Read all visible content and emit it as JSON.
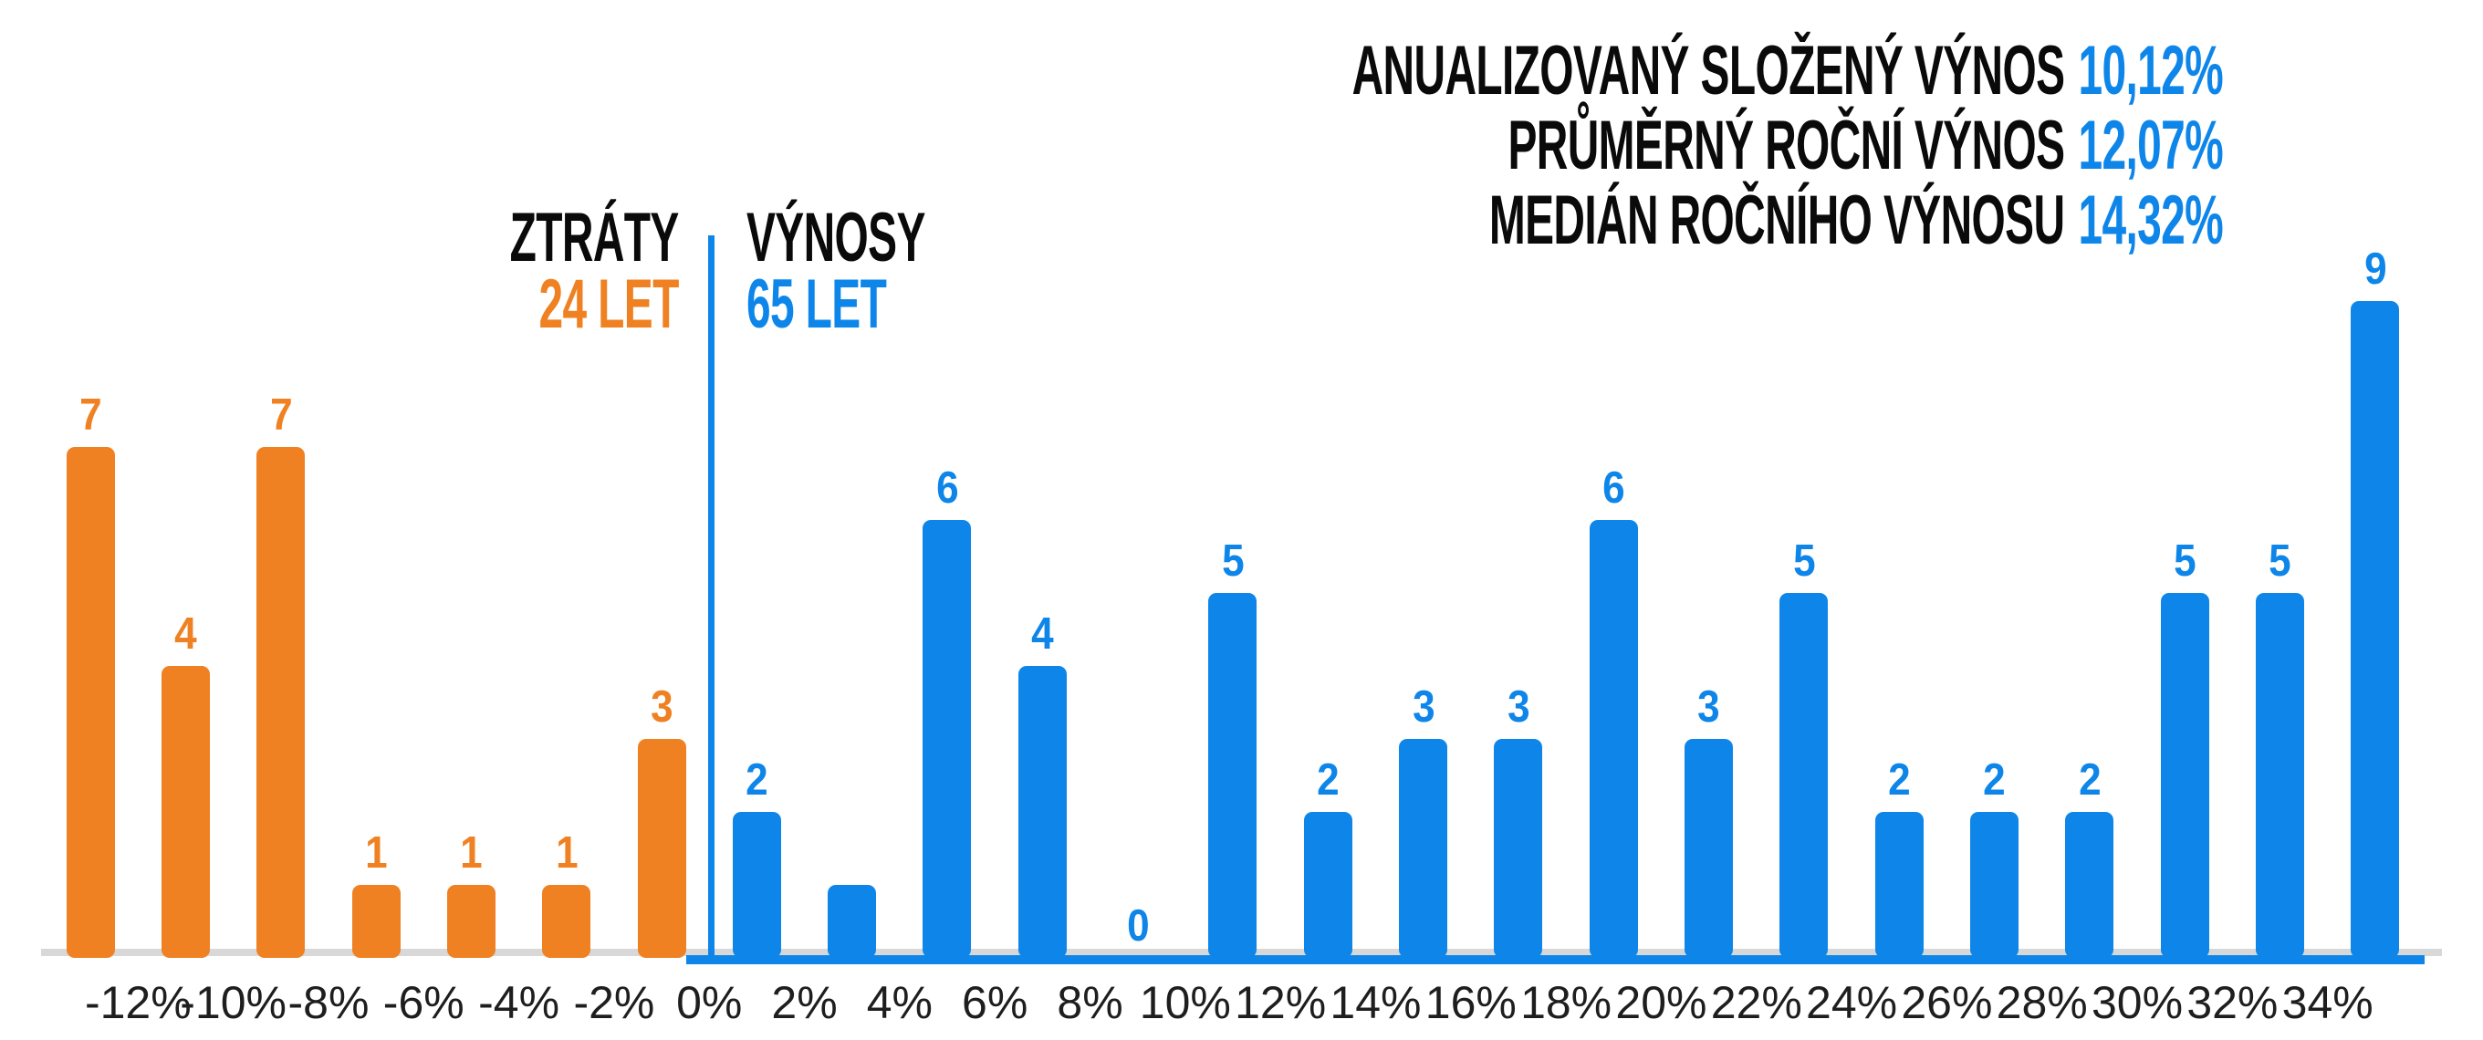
{
  "stats": {
    "lines": [
      {
        "label": "ANUALIZOVANÝ SLOŽENÝ VÝNOS",
        "value": "10,12%"
      },
      {
        "label": "PRŮMĚRNÝ ROČNÍ VÝNOS",
        "value": "12,07%"
      },
      {
        "label": "MEDIÁN ROČNÍHO VÝNOSU",
        "value": "14,32%"
      }
    ]
  },
  "legend": {
    "losses": {
      "title": "ZTRÁTY",
      "subtitle": "24 LET"
    },
    "gains": {
      "title": "VÝNOSY",
      "subtitle": "65 LET"
    }
  },
  "colors": {
    "losses": "#EF8122",
    "gains": "#0E86E9",
    "baseline": "#D8D8D8",
    "text": "#0A0A0A",
    "axis_text": "#1E1E1E"
  },
  "chart_data": {
    "type": "bar",
    "subtype": "histogram",
    "x_tick_labels": [
      "-12%",
      "-10%",
      "-8%",
      "-6%",
      "-4%",
      "-2%",
      "0%",
      "2%",
      "4%",
      "6%",
      "8%",
      "10%",
      "12%",
      "14%",
      "16%",
      "18%",
      "20%",
      "22%",
      "24%",
      "26%",
      "28%",
      "30%",
      "32%",
      "34%"
    ],
    "bin_width_percent": 2,
    "ylim": [
      0,
      9
    ],
    "grid": false,
    "series": [
      {
        "name": "ZTRÁTY 24 LET",
        "color": "#EF8122",
        "values": [
          7,
          4,
          7,
          1,
          1,
          1,
          3
        ],
        "bar_labels": [
          "7",
          "4",
          "7",
          "1",
          "1",
          "1",
          "3"
        ]
      },
      {
        "name": "VÝNOSY 65 LET",
        "color": "#0E86E9",
        "values": [
          2,
          1,
          6,
          4,
          0,
          5,
          2,
          3,
          3,
          6,
          3,
          5,
          2,
          2,
          2,
          5,
          5,
          9
        ],
        "bar_labels": [
          "2",
          "",
          "6",
          "4",
          "0",
          "5",
          "2",
          "3",
          "3",
          "6",
          "3",
          "5",
          "2",
          "2",
          "2",
          "5",
          "5",
          "9"
        ]
      }
    ]
  }
}
